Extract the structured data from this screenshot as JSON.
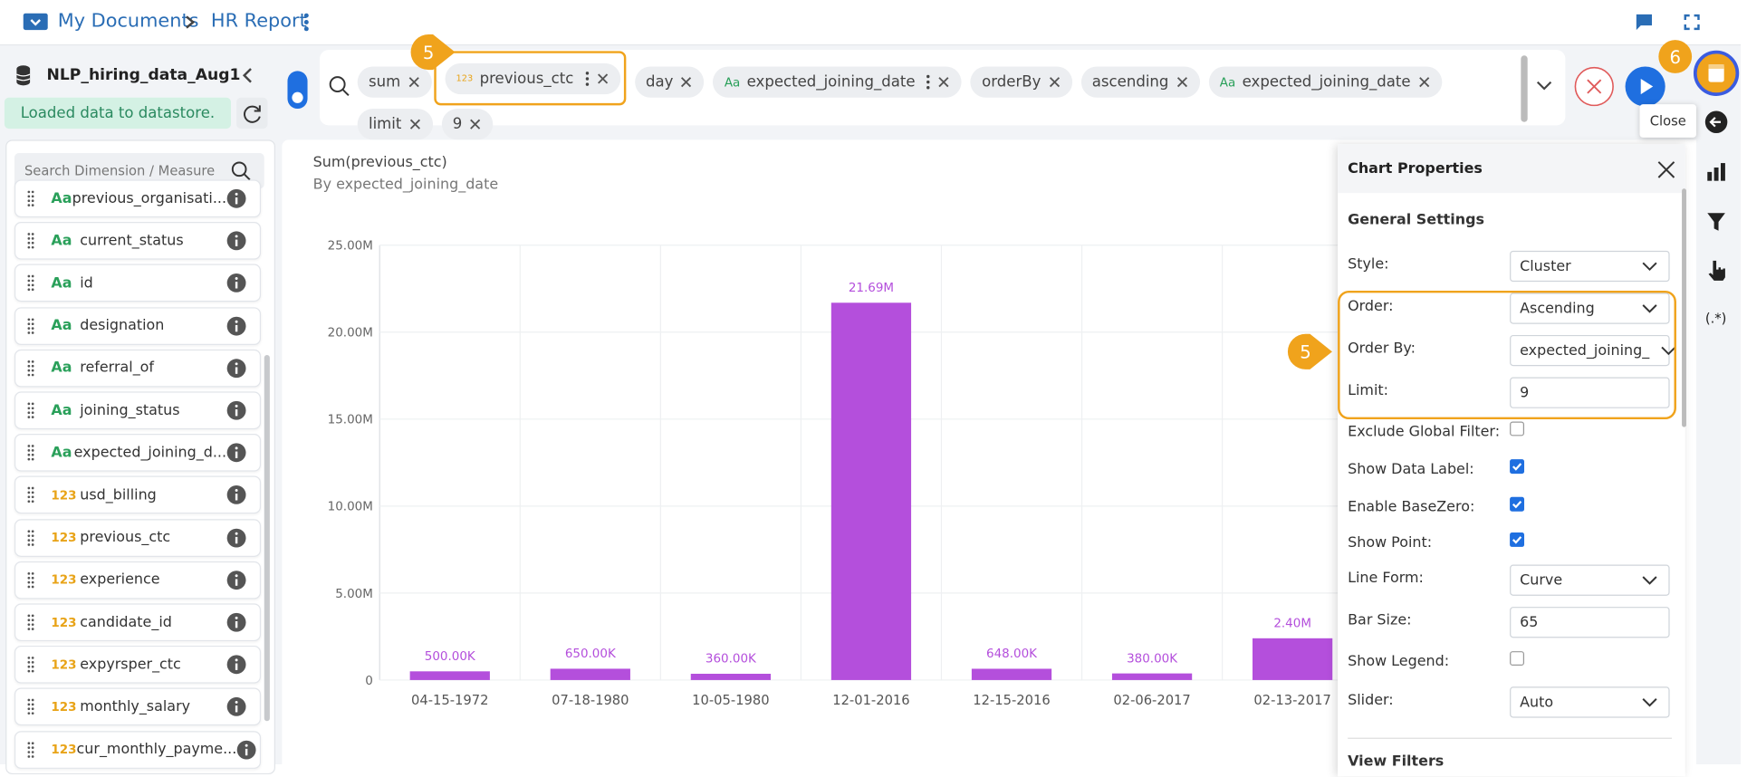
{
  "header": {
    "breadcrumb": [
      "My Documents",
      "HR Report"
    ]
  },
  "sidebar": {
    "dataset": "NLP_hiring_data_Aug1",
    "status": "Loaded data to datastore.",
    "search_placeholder": "Search Dimension / Measure",
    "fields": [
      {
        "type": "Aa",
        "name": "previous_organisati..."
      },
      {
        "type": "Aa",
        "name": "current_status"
      },
      {
        "type": "Aa",
        "name": "id"
      },
      {
        "type": "Aa",
        "name": "designation"
      },
      {
        "type": "Aa",
        "name": "referral_of"
      },
      {
        "type": "Aa",
        "name": "joining_status"
      },
      {
        "type": "Aa",
        "name": "expected_joining_d..."
      },
      {
        "type": "123",
        "name": "usd_billing"
      },
      {
        "type": "123",
        "name": "previous_ctc"
      },
      {
        "type": "123",
        "name": "experience"
      },
      {
        "type": "123",
        "name": "candidate_id"
      },
      {
        "type": "123",
        "name": "expyrsper_ctc"
      },
      {
        "type": "123",
        "name": "monthly_salary"
      },
      {
        "type": "123",
        "name": "cur_monthly_payme..."
      }
    ]
  },
  "query": {
    "chips": [
      {
        "label": "sum"
      },
      {
        "icon": "123",
        "label": "previous_ctc",
        "menu": true,
        "highlighted": true
      },
      {
        "label": "day"
      },
      {
        "icon": "Aa",
        "label": "expected_joining_date",
        "menu": true
      },
      {
        "label": "orderBy"
      },
      {
        "label": "ascending"
      },
      {
        "icon": "Aa",
        "label": "expected_joining_date"
      },
      {
        "label": "limit"
      },
      {
        "label": "9"
      }
    ]
  },
  "callouts": [
    "5",
    "6",
    "5"
  ],
  "tooltip": "Close",
  "chart_data": {
    "type": "bar",
    "title": "Sum(previous_ctc)",
    "subtitle": "By expected_joining_date",
    "categories": [
      "04-15-1972",
      "07-18-1980",
      "10-05-1980",
      "12-01-2016",
      "12-15-2016",
      "02-06-2017",
      "02-13-2017"
    ],
    "values": [
      500000,
      650000,
      360000,
      21690000,
      648000,
      380000,
      2400000
    ],
    "value_labels": [
      "500.00K",
      "650.00K",
      "360.00K",
      "21.69M",
      "648.00K",
      "380.00K",
      "2.40M"
    ],
    "color": "#b44fdc",
    "ylim": [
      0,
      25000000
    ],
    "yticks": [
      0,
      {
        "value": 5000000,
        "label": "5.00M"
      },
      {
        "value": 10000000,
        "label": "10.00M"
      },
      {
        "value": 15000000,
        "label": "15.00M"
      },
      {
        "value": 20000000,
        "label": "20.00M"
      },
      {
        "value": 25000000,
        "label": "25.00M"
      }
    ],
    "grid": true
  },
  "properties": {
    "title": "Chart Properties",
    "section": "General Settings",
    "fields": [
      {
        "label": "Style:",
        "kind": "select",
        "value": "Cluster"
      },
      {
        "label": "Order:",
        "kind": "select",
        "value": "Ascending"
      },
      {
        "label": "Order By:",
        "kind": "select",
        "value": "expected_joining_"
      },
      {
        "label": "Limit:",
        "kind": "input",
        "value": "9"
      },
      {
        "label": "Exclude Global Filter:",
        "kind": "checkbox",
        "checked": false
      },
      {
        "label": "Show Data Label:",
        "kind": "checkbox",
        "checked": true
      },
      {
        "label": "Enable BaseZero:",
        "kind": "checkbox",
        "checked": true
      },
      {
        "label": "Show Point:",
        "kind": "checkbox",
        "checked": true
      },
      {
        "label": "Line Form:",
        "kind": "select",
        "value": "Curve"
      },
      {
        "label": "Bar Size:",
        "kind": "input",
        "value": "65"
      },
      {
        "label": "Show Legend:",
        "kind": "checkbox",
        "checked": false
      },
      {
        "label": "Slider:",
        "kind": "select",
        "value": "Auto"
      }
    ],
    "next_section": "View Filters"
  },
  "side_icons": {
    "regex": "(.*)"
  }
}
